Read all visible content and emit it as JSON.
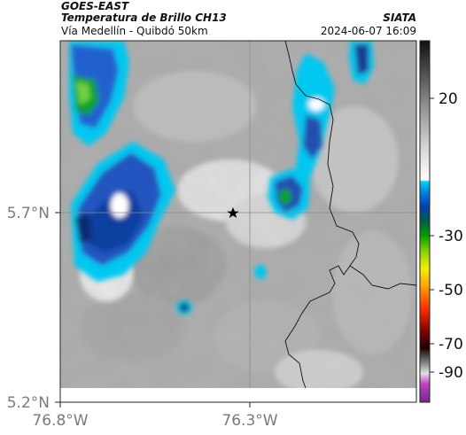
{
  "header": {
    "satellite": "GOES-EAST",
    "product": "Temperatura de Brillo CH13",
    "region": "Vía Medellín - Quibdó 50km",
    "brand": "SIATA",
    "timestamp": "2024-06-07 16:09"
  },
  "map": {
    "lon_ticks": [
      "76.8°W",
      "76.3°W"
    ],
    "lat_ticks": [
      "5.7°N",
      "5.2°N"
    ],
    "marker_icon": "star-icon",
    "grid": "on"
  },
  "colorbar": {
    "labels": [
      "20",
      "-30",
      "-50",
      "-70",
      "-90"
    ]
  }
}
